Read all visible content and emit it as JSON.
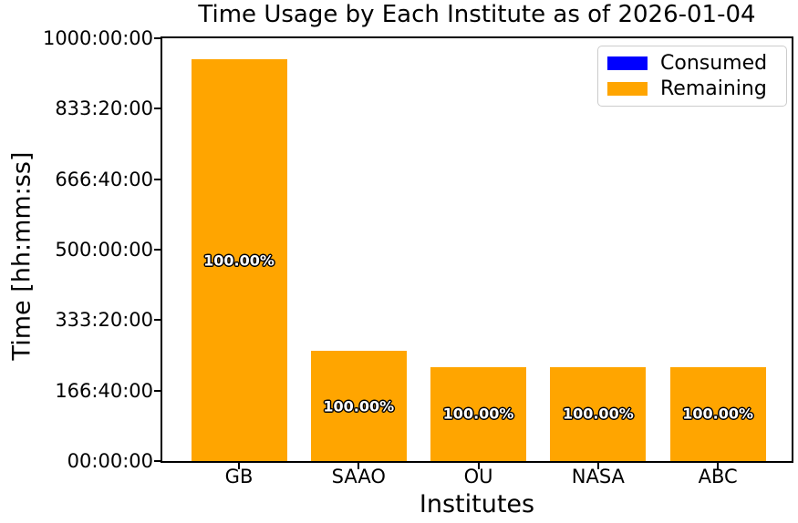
{
  "chart_data": {
    "type": "bar",
    "stacked": true,
    "title": "Time Usage by Each Institute as of 2026-01-04",
    "xlabel": "Institutes",
    "ylabel": "Time [hh:mm:ss]",
    "categories": [
      "GB",
      "SAAO",
      "OU",
      "NASA",
      "ABC"
    ],
    "series": [
      {
        "name": "Consumed",
        "color": "#0000ff",
        "values_hours": [
          0,
          0,
          0,
          0,
          0
        ]
      },
      {
        "name": "Remaining",
        "color": "#ffa500",
        "values_hours": [
          950,
          260,
          222.222,
          222.222,
          222.222
        ],
        "values_hhmmss": [
          "950:00:00",
          "260:00:00",
          "222:13:20",
          "222:13:20",
          "222:13:20"
        ]
      }
    ],
    "bar_labels": [
      "100.00%",
      "100.00%",
      "100.00%",
      "100.00%",
      "100.00%"
    ],
    "ylim_hours": [
      0,
      1000
    ],
    "yticks": [
      "00:00:00",
      "166:40:00",
      "333:20:00",
      "500:00:00",
      "666:40:00",
      "833:20:00",
      "1000:00:00"
    ],
    "grid": false,
    "legend": {
      "position": "upper right",
      "entries": [
        {
          "label": "Consumed",
          "color": "#0000ff"
        },
        {
          "label": "Remaining",
          "color": "#ffa500"
        }
      ]
    },
    "colors": {
      "text": "#000000",
      "spine": "#000000",
      "background": "#ffffff",
      "bar_label_fill": "#ffffff",
      "bar_label_outline": "#000000"
    }
  }
}
